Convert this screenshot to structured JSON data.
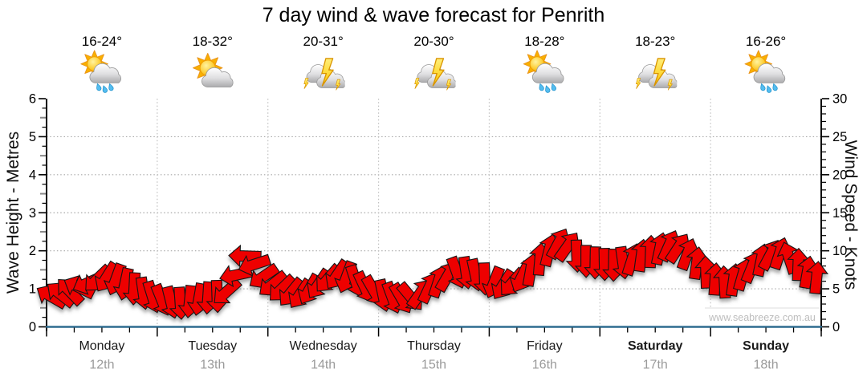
{
  "title": "7 day wind & wave forecast for Penrith",
  "watermark": "www.seabreeze.com.au",
  "colors": {
    "arrow": "#ee0000",
    "arrow_outline": "#151515",
    "axis_blue": "#2f6c8f",
    "grid": "#a8a8a8",
    "day_separator": "#c0c0c0",
    "day_text": "#1a1a1a",
    "date_text": "#9b9b9b",
    "watermark_text": "#bdbdbd",
    "sun": "#f9b000",
    "cloud": "#c9c9cb",
    "rain": "#53bdf0",
    "lightning": "#fdc800"
  },
  "days": [
    {
      "name": "Monday",
      "date": "12th",
      "temp_range": "16-24°",
      "icon": "sun-cloud-rain",
      "bold": false
    },
    {
      "name": "Tuesday",
      "date": "13th",
      "temp_range": "18-32°",
      "icon": "sun-cloud",
      "bold": false
    },
    {
      "name": "Wednesday",
      "date": "14th",
      "temp_range": "20-31°",
      "icon": "storm",
      "bold": false
    },
    {
      "name": "Thursday",
      "date": "15th",
      "temp_range": "20-30°",
      "icon": "storm",
      "bold": false
    },
    {
      "name": "Friday",
      "date": "16th",
      "temp_range": "18-28°",
      "icon": "sun-cloud-rain",
      "bold": false
    },
    {
      "name": "Saturday",
      "date": "17th",
      "temp_range": "18-23°",
      "icon": "storm",
      "bold": true
    },
    {
      "name": "Sunday",
      "date": "18th",
      "temp_range": "16-26°",
      "icon": "sun-cloud-rain",
      "bold": true
    }
  ],
  "chart_data": {
    "type": "scatter",
    "marker": "wind-direction-arrow",
    "title": "7 day wind & wave forecast for Penrith",
    "left_axis": {
      "label": "Wave Height - Metres",
      "min": 0,
      "max": 6,
      "tick_labels": [
        0,
        1,
        2,
        3,
        4,
        5,
        6
      ],
      "minor_step": 0.25,
      "gridlines": [
        1,
        2,
        3,
        4,
        5
      ]
    },
    "right_axis": {
      "label": "Wind Speed - Knots",
      "min": 0,
      "max": 30,
      "tick_labels": [
        0,
        5,
        10,
        15,
        20,
        25,
        30
      ],
      "minor_step": 1
    },
    "x_axis": {
      "span_hours": 168,
      "minor_tick_hours": 6,
      "day_boundary_separators": true
    },
    "series": [
      {
        "name": "Wind speed and direction",
        "speed_unit": "knots",
        "direction_unit": "degrees clockwise from up (arrow points toward)",
        "start_hour": 1,
        "step_hours": 2,
        "points": [
          [
            4.0,
            300
          ],
          [
            4.3,
            308
          ],
          [
            4.7,
            316
          ],
          [
            5.2,
            296
          ],
          [
            5.8,
            246
          ],
          [
            6.3,
            226
          ],
          [
            6.5,
            212
          ],
          [
            6.2,
            200
          ],
          [
            5.6,
            192
          ],
          [
            5.0,
            183
          ],
          [
            4.4,
            172
          ],
          [
            3.9,
            163
          ],
          [
            3.5,
            158
          ],
          [
            3.2,
            166
          ],
          [
            3.1,
            176
          ],
          [
            3.3,
            186
          ],
          [
            3.6,
            190
          ],
          [
            3.8,
            184
          ],
          [
            4.0,
            178
          ],
          [
            4.6,
            228
          ],
          [
            6.8,
            258
          ],
          [
            9.3,
            272
          ],
          [
            8.2,
            252
          ],
          [
            6.6,
            236
          ],
          [
            5.6,
            232
          ],
          [
            5.0,
            226
          ],
          [
            4.5,
            219
          ],
          [
            4.3,
            214
          ],
          [
            4.9,
            209
          ],
          [
            5.6,
            214
          ],
          [
            6.3,
            221
          ],
          [
            6.8,
            214
          ],
          [
            6.5,
            200
          ],
          [
            6.0,
            162
          ],
          [
            5.2,
            155
          ],
          [
            4.7,
            150
          ],
          [
            4.1,
            168
          ],
          [
            3.8,
            160
          ],
          [
            3.7,
            150
          ],
          [
            3.9,
            140
          ],
          [
            4.4,
            35
          ],
          [
            5.2,
            25
          ],
          [
            6.0,
            18
          ],
          [
            6.7,
            30
          ],
          [
            7.1,
            160
          ],
          [
            7.1,
            172
          ],
          [
            6.8,
            168
          ],
          [
            6.3,
            178
          ],
          [
            5.8,
            201
          ],
          [
            5.5,
            212
          ],
          [
            5.8,
            221
          ],
          [
            6.5,
            206
          ],
          [
            7.5,
            10
          ],
          [
            8.9,
            5
          ],
          [
            10.1,
            14
          ],
          [
            11.0,
            28
          ],
          [
            10.6,
            35
          ],
          [
            9.3,
            178
          ],
          [
            8.6,
            180
          ],
          [
            8.4,
            181
          ],
          [
            8.2,
            179
          ],
          [
            8.1,
            181
          ],
          [
            8.4,
            172
          ],
          [
            8.9,
            18
          ],
          [
            9.4,
            8
          ],
          [
            9.9,
            2
          ],
          [
            10.3,
            12
          ],
          [
            10.7,
            24
          ],
          [
            10.4,
            33
          ],
          [
            9.6,
            20
          ],
          [
            8.4,
            8
          ],
          [
            7.2,
            358
          ],
          [
            6.3,
            4
          ],
          [
            5.9,
            357
          ],
          [
            6.2,
            8
          ],
          [
            6.9,
            16
          ],
          [
            7.9,
            22
          ],
          [
            8.8,
            12
          ],
          [
            9.5,
            28
          ],
          [
            9.7,
            18
          ],
          [
            9.1,
            342
          ],
          [
            8.2,
            2
          ],
          [
            7.2,
            10
          ],
          [
            6.5,
            6
          ]
        ]
      }
    ]
  }
}
